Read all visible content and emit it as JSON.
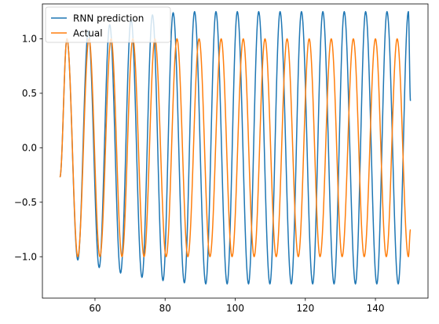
{
  "chart_data": {
    "type": "line",
    "title": "",
    "xlabel": "",
    "ylabel": "",
    "xlim": [
      45,
      155
    ],
    "ylim": [
      -1.38,
      1.32
    ],
    "xticks": [
      60,
      80,
      100,
      120,
      140
    ],
    "yticks": [
      -1.0,
      -0.5,
      0.0,
      0.5,
      1.0
    ],
    "xtick_labels": [
      "60",
      "80",
      "100",
      "120",
      "140"
    ],
    "ytick_labels": [
      "−1.0",
      "−0.5",
      "0.0",
      "0.5",
      "1.0"
    ],
    "grid": false,
    "legend_position": "upper left",
    "x_range": [
      50,
      150
    ],
    "series": [
      {
        "name": "RNN prediction",
        "color": "#1f77b4",
        "model": "growing sinusoid: amplitude rises from ~1.0 near x=52 to ~1.25 by x≈80 and stays flat; period slightly shorter than Actual",
        "amplitude_at_start": 1.0,
        "amplitude_max": 1.25,
        "amplitude_rise_end_x": 80,
        "period": 6.1,
        "start_y": -0.27,
        "end_y": 0.43,
        "peaks": [
          {
            "x": 52.0,
            "y": 1.0
          },
          {
            "x": 58.1,
            "y": 1.07
          },
          {
            "x": 64.2,
            "y": 1.13
          },
          {
            "x": 70.3,
            "y": 1.18
          },
          {
            "x": 76.4,
            "y": 1.22
          },
          {
            "x": 82.3,
            "y": 1.24
          },
          {
            "x": 88.4,
            "y": 1.25
          },
          {
            "x": 94.5,
            "y": 1.25
          },
          {
            "x": 100.6,
            "y": 1.25
          },
          {
            "x": 106.7,
            "y": 1.25
          },
          {
            "x": 112.8,
            "y": 1.25
          },
          {
            "x": 118.9,
            "y": 1.25
          },
          {
            "x": 125.0,
            "y": 1.25
          },
          {
            "x": 131.1,
            "y": 1.25
          },
          {
            "x": 137.2,
            "y": 1.25
          },
          {
            "x": 143.3,
            "y": 1.25
          },
          {
            "x": 149.4,
            "y": 1.25
          }
        ],
        "troughs": [
          {
            "x": 55.1,
            "y": -1.03
          },
          {
            "x": 61.2,
            "y": -1.1
          },
          {
            "x": 67.3,
            "y": -1.15
          },
          {
            "x": 73.4,
            "y": -1.19
          },
          {
            "x": 79.4,
            "y": -1.22
          },
          {
            "x": 85.5,
            "y": -1.24
          },
          {
            "x": 91.6,
            "y": -1.25
          },
          {
            "x": 97.7,
            "y": -1.25
          },
          {
            "x": 103.8,
            "y": -1.25
          },
          {
            "x": 109.9,
            "y": -1.25
          },
          {
            "x": 116.0,
            "y": -1.25
          },
          {
            "x": 122.1,
            "y": -1.25
          },
          {
            "x": 128.2,
            "y": -1.25
          },
          {
            "x": 134.3,
            "y": -1.25
          },
          {
            "x": 140.4,
            "y": -1.25
          },
          {
            "x": 146.5,
            "y": -1.25
          }
        ]
      },
      {
        "name": "Actual",
        "color": "#ff7f0e",
        "model": "sinusoid, amplitude 1.0",
        "amplitude": 1.0,
        "period": 6.28,
        "start_y": -0.27,
        "end_y": -0.75,
        "peaks": [
          {
            "x": 52.0,
            "y": 1.0
          },
          {
            "x": 58.3,
            "y": 1.0
          },
          {
            "x": 64.6,
            "y": 1.0
          },
          {
            "x": 70.8,
            "y": 1.0
          },
          {
            "x": 77.1,
            "y": 1.0
          },
          {
            "x": 83.4,
            "y": 1.0
          },
          {
            "x": 89.7,
            "y": 1.0
          },
          {
            "x": 96.0,
            "y": 1.0
          },
          {
            "x": 102.3,
            "y": 1.0
          },
          {
            "x": 108.5,
            "y": 1.0
          },
          {
            "x": 114.8,
            "y": 1.0
          },
          {
            "x": 121.1,
            "y": 1.0
          },
          {
            "x": 127.4,
            "y": 1.0
          },
          {
            "x": 133.7,
            "y": 1.0
          },
          {
            "x": 140.0,
            "y": 1.0
          },
          {
            "x": 146.2,
            "y": 1.0
          }
        ],
        "troughs": [
          {
            "x": 55.1,
            "y": -1.0
          },
          {
            "x": 61.4,
            "y": -1.0
          },
          {
            "x": 67.7,
            "y": -1.0
          },
          {
            "x": 74.0,
            "y": -1.0
          },
          {
            "x": 80.3,
            "y": -1.0
          },
          {
            "x": 86.5,
            "y": -1.0
          },
          {
            "x": 92.8,
            "y": -1.0
          },
          {
            "x": 99.1,
            "y": -1.0
          },
          {
            "x": 105.4,
            "y": -1.0
          },
          {
            "x": 111.7,
            "y": -1.0
          },
          {
            "x": 118.0,
            "y": -1.0
          },
          {
            "x": 124.2,
            "y": -1.0
          },
          {
            "x": 130.5,
            "y": -1.0
          },
          {
            "x": 136.8,
            "y": -1.0
          },
          {
            "x": 143.1,
            "y": -1.0
          },
          {
            "x": 149.4,
            "y": -1.0
          }
        ]
      }
    ]
  }
}
